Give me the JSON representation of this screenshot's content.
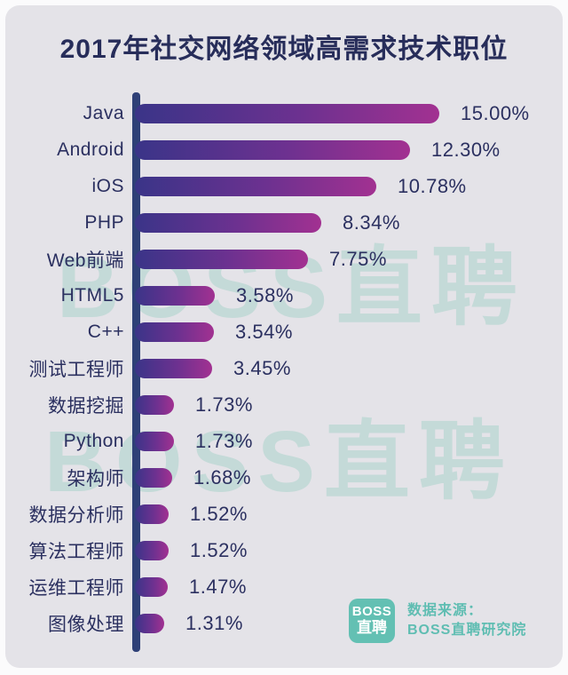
{
  "chart_data": {
    "type": "bar",
    "orientation": "horizontal",
    "title": "2017年社交网络领域高需求技术职位",
    "categories": [
      "Java",
      "Android",
      "iOS",
      "PHP",
      "Web前端",
      "HTML5",
      "C++",
      "测试工程师",
      "数据挖掘",
      "Python",
      "架构师",
      "数据分析师",
      "算法工程师",
      "运维工程师",
      "图像处理"
    ],
    "values": [
      15.0,
      12.3,
      10.78,
      8.34,
      7.75,
      3.58,
      3.54,
      3.45,
      1.73,
      1.73,
      1.68,
      1.52,
      1.52,
      1.47,
      1.31
    ],
    "value_labels": [
      "15.00%",
      "12.30%",
      "10.78%",
      "8.34%",
      "7.75%",
      "3.58%",
      "3.54%",
      "3.45%",
      "1.73%",
      "1.73%",
      "1.68%",
      "1.52%",
      "1.52%",
      "1.47%",
      "1.31%"
    ],
    "xlabel": "",
    "ylabel": "",
    "xlim": [
      0,
      15
    ],
    "grid": false,
    "legend": false,
    "bar_gradient_start": "#3a3488",
    "bar_gradient_end": "#a23191",
    "axis_color": "#2e4077",
    "text_color": "#2b3060",
    "background_color": "#e4e3e8"
  },
  "watermark": {
    "text": "BOSS直聘"
  },
  "footer": {
    "logo_line1": "BOSS",
    "logo_line2": "直聘",
    "source_label": "数据来源：",
    "source_name": "BOSS直聘研究院",
    "accent_color": "#63c0b3"
  }
}
